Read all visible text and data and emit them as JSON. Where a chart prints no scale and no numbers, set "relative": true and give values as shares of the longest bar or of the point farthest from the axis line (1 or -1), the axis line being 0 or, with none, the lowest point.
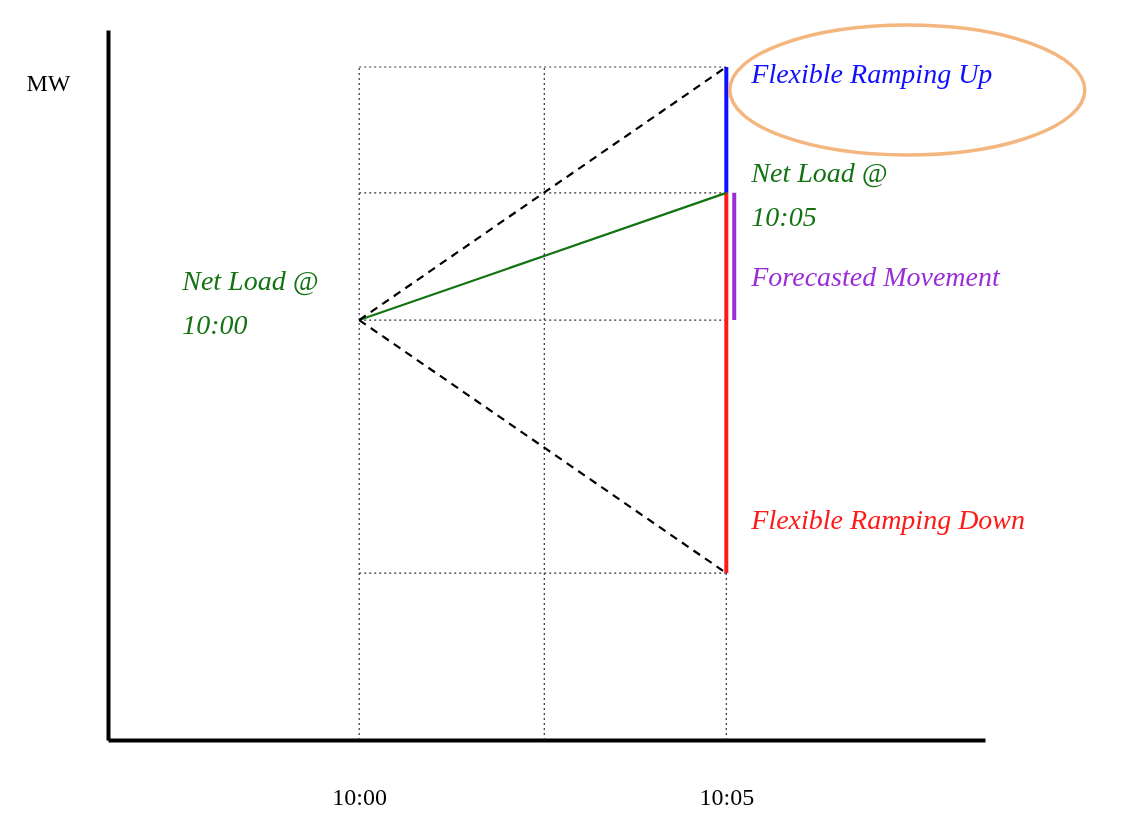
{
  "chart_data": {
    "type": "line",
    "relative": true,
    "ylabel": "MW",
    "xlim": [
      9.943,
      10.142
    ],
    "xticks": [
      {
        "value": 10.0,
        "label": "10:00"
      },
      {
        "value": 10.0833,
        "label": "10:05"
      }
    ],
    "series": [
      {
        "name": "Flexible Ramping Up",
        "color": "#1010ff",
        "x": [
          10.0833,
          10.0833
        ],
        "values": [
          0.813,
          1.0
        ]
      },
      {
        "name": "Flexible Ramping Down",
        "color": "#ff1a1a",
        "x": [
          10.0833,
          10.0833
        ],
        "values": [
          0.813,
          0.248
        ]
      },
      {
        "name": "Forecasted Movement",
        "color": "#9a2ed6",
        "x": [
          10.0851,
          10.0851
        ],
        "values": [
          0.624,
          0.813
        ]
      },
      {
        "color": "#137313",
        "x": [
          10.0,
          10.0833
        ],
        "values": [
          0.624,
          0.813
        ]
      },
      {
        "color": "#000000",
        "line_style": "dashed",
        "x": [
          10.0,
          10.0833
        ],
        "values": [
          0.624,
          1.0
        ]
      },
      {
        "color": "#000000",
        "line_style": "dashed",
        "x": [
          10.0,
          10.0833
        ],
        "values": [
          0.624,
          0.248
        ]
      }
    ],
    "ref_lines": [
      {
        "axis": "y",
        "value": 1.0,
        "line_style": "dotted",
        "color": "#333333"
      },
      {
        "axis": "y",
        "value": 0.813,
        "line_style": "dotted",
        "color": "#333333"
      },
      {
        "axis": "y",
        "value": 0.624,
        "line_style": "dotted",
        "color": "#333333"
      },
      {
        "axis": "y",
        "value": 0.248,
        "line_style": "dotted",
        "color": "#333333"
      },
      {
        "axis": "x",
        "value": 10.0,
        "line_style": "dotted",
        "color": "#333333"
      },
      {
        "axis": "x",
        "value": 10.042,
        "line_style": "dotted",
        "color": "#333333"
      },
      {
        "axis": "x",
        "value": 10.0833,
        "line_style": "dotted",
        "color": "#333333"
      }
    ],
    "annotations": [
      {
        "text": "Net Load @\n 10:00",
        "x": 10.0,
        "y": 0.624
      },
      {
        "text": "Net Load @\n10:05",
        "x": 10.0833,
        "y": 0.813
      }
    ],
    "grid": false
  }
}
